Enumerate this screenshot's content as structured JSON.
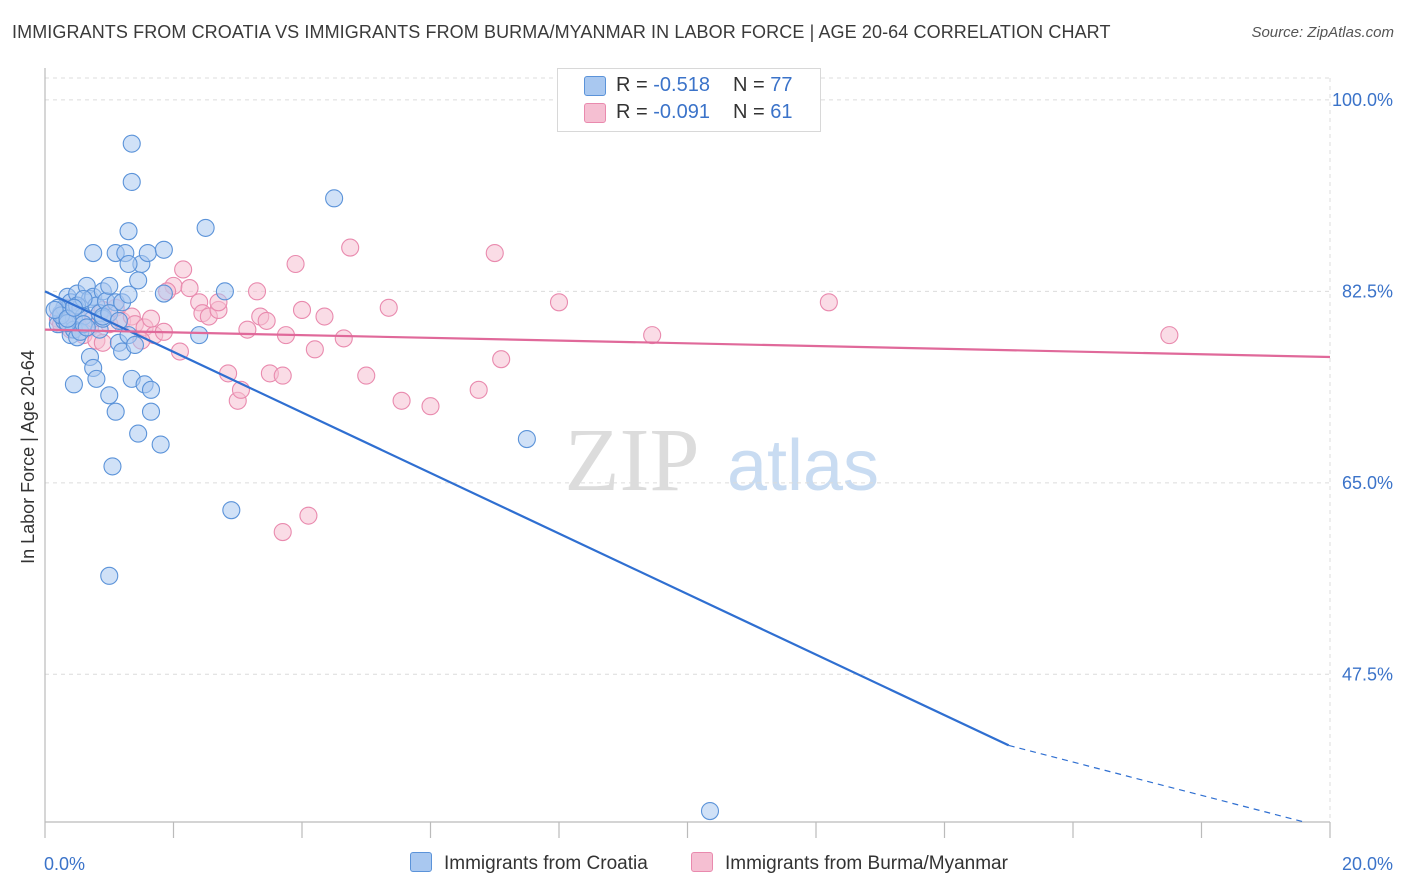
{
  "header": {
    "title": "IMMIGRANTS FROM CROATIA VS IMMIGRANTS FROM BURMA/MYANMAR IN LABOR FORCE | AGE 20-64 CORRELATION CHART",
    "source": "Source: ZipAtlas.com"
  },
  "watermark": {
    "zip": "ZIP",
    "atlas": "atlas"
  },
  "legend_top": {
    "rows": [
      {
        "r_label": "R = ",
        "r_value": "-0.518",
        "n_label": "N = ",
        "n_value": "77"
      },
      {
        "r_label": "R = ",
        "r_value": "-0.091",
        "n_label": "N = ",
        "n_value": "61"
      }
    ]
  },
  "colors": {
    "blue_fill": "#a9c8f0",
    "blue_stroke": "#5b93d9",
    "blue_line": "#2f6fd1",
    "pink_fill": "#f5bfd2",
    "pink_stroke": "#e98aae",
    "pink_line": "#e0699a",
    "tick_label": "#3b73c9",
    "grid": "#dcdcdc"
  },
  "chart_data": {
    "type": "scatter",
    "title": "IMMIGRANTS FROM CROATIA VS IMMIGRANTS FROM BURMA/MYANMAR IN LABOR FORCE | AGE 20-64 CORRELATION CHART",
    "xlabel": "",
    "ylabel": "In Labor Force | Age 20-64",
    "xlim": [
      0,
      20
    ],
    "ylim": [
      34,
      102
    ],
    "x_tick_labels": [
      "0.0%",
      "20.0%"
    ],
    "y_ticks": [
      47.5,
      65.0,
      82.5,
      100.0
    ],
    "y_tick_labels": [
      "47.5%",
      "65.0%",
      "82.5%",
      "100.0%"
    ],
    "grid": true,
    "legend_position": "bottom",
    "series": [
      {
        "name": "Immigrants from Croatia",
        "r": -0.518,
        "n": 77,
        "trend": {
          "x0": 0.0,
          "y0": 82.5,
          "x1": 15.0,
          "y1": 41.0,
          "dashed_to_x": 19.6,
          "dashed_to_y": 34.0
        },
        "points": [
          [
            0.2,
            79.5
          ],
          [
            0.25,
            80.5
          ],
          [
            0.3,
            81.0
          ],
          [
            0.35,
            82.0
          ],
          [
            0.3,
            79.8
          ],
          [
            0.4,
            81.5
          ],
          [
            0.45,
            80.0
          ],
          [
            0.5,
            82.3
          ],
          [
            0.55,
            81.0
          ],
          [
            0.6,
            80.2
          ],
          [
            0.65,
            83.0
          ],
          [
            0.7,
            81.8
          ],
          [
            0.75,
            82.0
          ],
          [
            0.8,
            81.2
          ],
          [
            0.85,
            80.5
          ],
          [
            0.9,
            82.5
          ],
          [
            0.95,
            81.6
          ],
          [
            1.0,
            83.0
          ],
          [
            1.1,
            81.5
          ],
          [
            0.4,
            78.5
          ],
          [
            0.45,
            79.0
          ],
          [
            0.5,
            78.3
          ],
          [
            0.55,
            78.8
          ],
          [
            0.6,
            79.5
          ],
          [
            0.2,
            81.0
          ],
          [
            0.25,
            80.3
          ],
          [
            0.35,
            79.6
          ],
          [
            0.5,
            81.2
          ],
          [
            0.15,
            80.8
          ],
          [
            0.7,
            76.5
          ],
          [
            0.75,
            75.5
          ],
          [
            0.85,
            79.0
          ],
          [
            0.9,
            80.0
          ],
          [
            1.15,
            77.8
          ],
          [
            1.2,
            77.0
          ],
          [
            1.3,
            78.5
          ],
          [
            1.4,
            77.6
          ],
          [
            0.8,
            74.5
          ],
          [
            1.0,
            73.0
          ],
          [
            1.35,
            74.5
          ],
          [
            1.55,
            74.0
          ],
          [
            1.65,
            73.5
          ],
          [
            0.45,
            74.0
          ],
          [
            1.1,
            71.5
          ],
          [
            1.45,
            69.5
          ],
          [
            1.65,
            71.5
          ],
          [
            1.8,
            68.5
          ],
          [
            1.05,
            66.5
          ],
          [
            2.9,
            62.5
          ],
          [
            1.0,
            56.5
          ],
          [
            1.1,
            86.0
          ],
          [
            1.25,
            86.0
          ],
          [
            1.5,
            85.0
          ],
          [
            1.6,
            86.0
          ],
          [
            1.85,
            86.3
          ],
          [
            1.45,
            83.5
          ],
          [
            2.5,
            88.3
          ],
          [
            1.3,
            88.0
          ],
          [
            1.3,
            85.0
          ],
          [
            1.85,
            82.3
          ],
          [
            2.8,
            82.5
          ],
          [
            2.4,
            78.5
          ],
          [
            1.35,
            96.0
          ],
          [
            1.35,
            92.5
          ],
          [
            4.5,
            91.0
          ],
          [
            0.75,
            86.0
          ],
          [
            0.9,
            80.2
          ],
          [
            1.0,
            80.5
          ],
          [
            1.2,
            81.5
          ],
          [
            7.5,
            69.0
          ],
          [
            10.35,
            35.0
          ],
          [
            0.6,
            81.8
          ],
          [
            1.3,
            82.2
          ],
          [
            0.35,
            80.0
          ],
          [
            0.65,
            79.2
          ],
          [
            0.45,
            81.0
          ],
          [
            1.15,
            79.8
          ]
        ]
      },
      {
        "name": "Immigrants from Burma/Myanmar",
        "r": -0.091,
        "n": 61,
        "trend": {
          "x0": 0.0,
          "y0": 79.0,
          "x1": 20.0,
          "y1": 76.5
        },
        "points": [
          [
            0.2,
            80.0
          ],
          [
            0.25,
            79.5
          ],
          [
            0.3,
            80.5
          ],
          [
            0.35,
            81.0
          ],
          [
            0.4,
            79.0
          ],
          [
            0.5,
            80.2
          ],
          [
            0.6,
            78.5
          ],
          [
            0.7,
            79.2
          ],
          [
            0.75,
            80.0
          ],
          [
            0.8,
            78.0
          ],
          [
            0.9,
            80.8
          ],
          [
            1.0,
            79.5
          ],
          [
            1.1,
            81.0
          ],
          [
            1.2,
            79.8
          ],
          [
            1.35,
            80.2
          ],
          [
            1.4,
            79.5
          ],
          [
            1.55,
            79.2
          ],
          [
            1.65,
            80.0
          ],
          [
            1.7,
            78.5
          ],
          [
            1.85,
            78.8
          ],
          [
            2.0,
            83.0
          ],
          [
            2.1,
            77.0
          ],
          [
            2.15,
            84.5
          ],
          [
            2.25,
            82.8
          ],
          [
            2.4,
            81.5
          ],
          [
            2.45,
            80.5
          ],
          [
            2.55,
            80.2
          ],
          [
            2.7,
            80.8
          ],
          [
            2.85,
            75.0
          ],
          [
            3.0,
            72.5
          ],
          [
            3.05,
            73.5
          ],
          [
            3.15,
            79.0
          ],
          [
            3.3,
            82.5
          ],
          [
            3.35,
            80.2
          ],
          [
            3.45,
            79.8
          ],
          [
            3.5,
            75.0
          ],
          [
            3.7,
            74.8
          ],
          [
            3.75,
            78.5
          ],
          [
            3.9,
            85.0
          ],
          [
            4.0,
            80.8
          ],
          [
            4.2,
            77.2
          ],
          [
            4.35,
            80.2
          ],
          [
            4.65,
            78.2
          ],
          [
            4.75,
            86.5
          ],
          [
            5.0,
            74.8
          ],
          [
            5.35,
            81.0
          ],
          [
            5.55,
            72.5
          ],
          [
            6.0,
            72.0
          ],
          [
            7.0,
            86.0
          ],
          [
            7.1,
            76.3
          ],
          [
            8.0,
            81.5
          ],
          [
            9.45,
            78.5
          ],
          [
            12.2,
            81.5
          ],
          [
            17.5,
            78.5
          ],
          [
            4.1,
            62.0
          ],
          [
            3.7,
            60.5
          ],
          [
            6.75,
            73.5
          ],
          [
            2.7,
            81.5
          ],
          [
            1.9,
            82.5
          ],
          [
            1.5,
            78.0
          ],
          [
            0.9,
            77.8
          ]
        ]
      }
    ]
  },
  "bottom_legend": {
    "items": [
      {
        "label": "Immigrants from Croatia"
      },
      {
        "label": "Immigrants from Burma/Myanmar"
      }
    ]
  }
}
